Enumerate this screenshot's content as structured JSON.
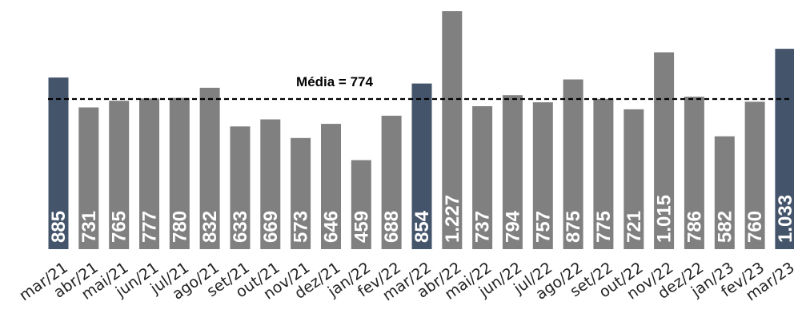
{
  "chart_data": {
    "type": "bar",
    "categories": [
      "mar/21",
      "abr/21",
      "mai/21",
      "jun/21",
      "jul/21",
      "ago/21",
      "set/21",
      "out/21",
      "nov/21",
      "dez/21",
      "jan/22",
      "fev/22",
      "mar/22",
      "abr/22",
      "mai/22",
      "jun/22",
      "jul/22",
      "ago/22",
      "set/22",
      "out/22",
      "nov/22",
      "dez/22",
      "jan/23",
      "fev/23",
      "mar/23"
    ],
    "values": [
      885,
      731,
      765,
      777,
      780,
      832,
      633,
      669,
      573,
      646,
      459,
      688,
      854,
      1227,
      737,
      794,
      757,
      875,
      775,
      721,
      1015,
      786,
      582,
      760,
      1033
    ],
    "value_labels": [
      "885",
      "731",
      "765",
      "777",
      "780",
      "832",
      "633",
      "669",
      "573",
      "646",
      "459",
      "688",
      "854",
      "1.227",
      "737",
      "794",
      "757",
      "875",
      "775",
      "721",
      "1.015",
      "786",
      "582",
      "760",
      "1.033"
    ],
    "highlighted_categories": [
      "mar/21",
      "mar/22",
      "mar/23"
    ],
    "colors": {
      "default": "#808080",
      "highlight": "#44546a",
      "average_line": "#000000"
    },
    "average": {
      "value": 774,
      "label": "Média = 774",
      "style": "dashed"
    },
    "ylim": [
      0,
      1227
    ],
    "grid": false,
    "title": "",
    "xlabel": "",
    "ylabel": ""
  }
}
